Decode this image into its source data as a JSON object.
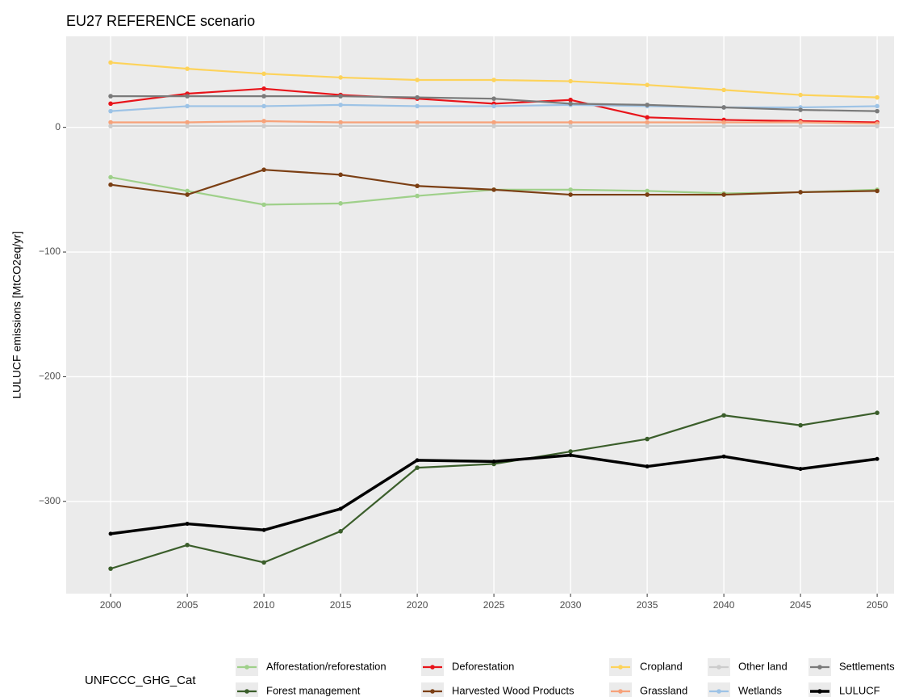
{
  "chart_data": {
    "type": "line",
    "title": "EU27 REFERENCE scenario",
    "y_label": "LULUCF emissions [MtCO2eq/yr]",
    "legend_title": "UNFCCC_GHG_Cat",
    "x": [
      2000,
      2005,
      2010,
      2015,
      2020,
      2025,
      2030,
      2035,
      2040,
      2045,
      2050
    ],
    "xlim": [
      1997.1,
      2051.1
    ],
    "xticks": [
      2000,
      2005,
      2010,
      2015,
      2020,
      2025,
      2030,
      2035,
      2040,
      2045,
      2050
    ],
    "ylim": [
      -374,
      73
    ],
    "yticks": [
      {
        "value": -300,
        "label": "−300"
      },
      {
        "value": -200,
        "label": "−200"
      },
      {
        "value": -100,
        "label": "−100"
      },
      0
    ],
    "grid": true,
    "legend": "bottom",
    "series": [
      {
        "name": "Afforestation/reforestation",
        "color": "#9fd08a",
        "values": [
          -40,
          -51,
          -62,
          -61,
          -55,
          -50,
          -50,
          -51,
          -53,
          -52,
          -50
        ]
      },
      {
        "name": "Forest management",
        "color": "#3b5e2b",
        "values": [
          -354,
          -335,
          -349,
          -324,
          -273,
          -270,
          -260,
          -250,
          -231,
          -239,
          -229
        ]
      },
      {
        "name": "Deforestation",
        "color": "#e8141a",
        "values": [
          19,
          27,
          31,
          26,
          23,
          19,
          22,
          8,
          6,
          5,
          4
        ]
      },
      {
        "name": "Harvested Wood Products",
        "color": "#7b3f14",
        "values": [
          -46,
          -54,
          -34,
          -38,
          -47,
          -50,
          -54,
          -54,
          -54,
          -52,
          -51
        ]
      },
      {
        "name": "Cropland",
        "color": "#fdd35b",
        "values": [
          52,
          47,
          43,
          40,
          38,
          38,
          37,
          34,
          30,
          26,
          24
        ]
      },
      {
        "name": "Grassland",
        "color": "#f7a27a",
        "values": [
          4,
          4,
          5,
          4,
          4,
          4,
          4,
          4,
          4,
          4,
          3
        ]
      },
      {
        "name": "Other land",
        "color": "#cccccc",
        "values": [
          1,
          1,
          1,
          1,
          1,
          1,
          1,
          1,
          1,
          1,
          1
        ]
      },
      {
        "name": "Wetlands",
        "color": "#9dc3e6",
        "values": [
          13,
          17,
          17,
          18,
          17,
          17,
          18,
          17,
          16,
          16,
          17
        ]
      },
      {
        "name": "Settlements",
        "color": "#7a7a7a",
        "values": [
          25,
          25,
          25,
          25,
          24,
          23,
          19,
          18,
          16,
          14,
          13
        ]
      },
      {
        "name": "LULUCF",
        "color": "#000000",
        "values": [
          -326,
          -318,
          -323,
          -306,
          -267,
          -268,
          -263,
          -272,
          -264,
          -274,
          -266
        ]
      }
    ]
  }
}
